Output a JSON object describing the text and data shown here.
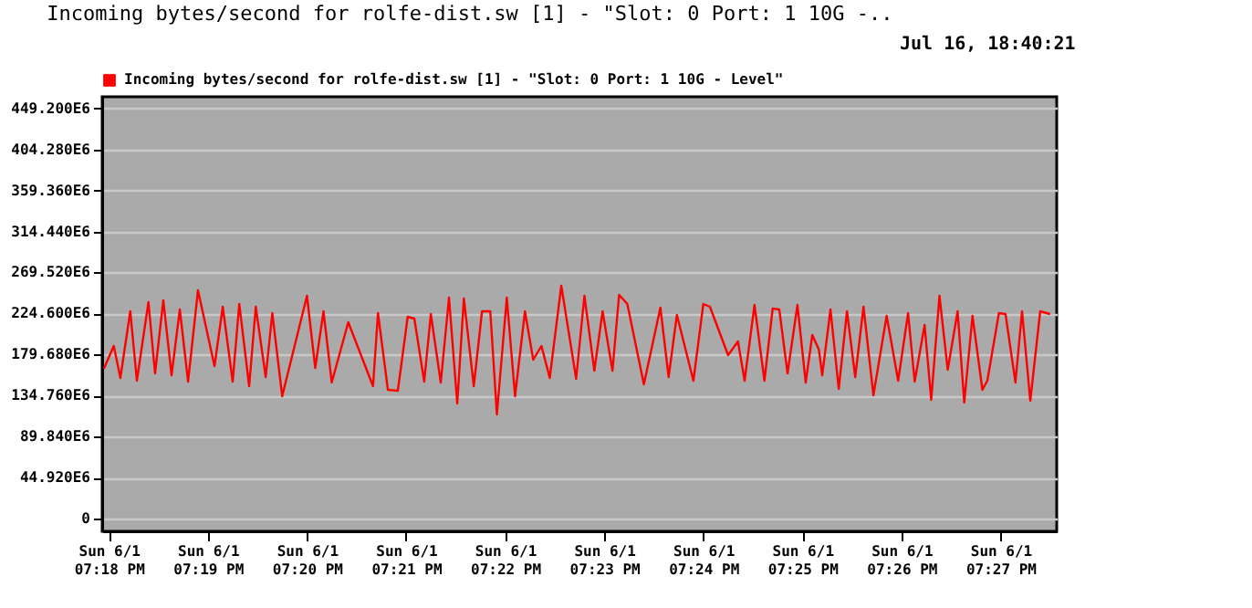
{
  "chart_data": {
    "type": "line",
    "title": "Incoming bytes/second for rolfe-dist.sw [1] - \"Slot: 0 Port: 1 10G -..",
    "annotations": [
      "Jul 16, 18:40:21"
    ],
    "x": [
      "--06-01T19:17:57",
      "--06-01T19:18:03",
      "--06-01T19:18:07",
      "--06-01T19:18:13",
      "--06-01T19:18:17",
      "--06-01T19:18:24",
      "--06-01T19:18:28",
      "--06-01T19:18:33",
      "--06-01T19:18:38",
      "--06-01T19:18:43",
      "--06-01T19:18:48",
      "--06-01T19:18:54",
      "--06-01T19:19:04",
      "--06-01T19:19:09",
      "--06-01T19:19:15",
      "--06-01T19:19:19",
      "--06-01T19:19:25",
      "--06-01T19:19:29",
      "--06-01T19:19:35",
      "--06-01T19:19:39",
      "--06-01T19:19:45",
      "--06-01T19:20:00",
      "--06-01T19:20:05",
      "--06-01T19:20:10",
      "--06-01T19:20:15",
      "--06-01T19:20:25",
      "--06-01T19:20:40",
      "--06-01T19:20:43",
      "--06-01T19:20:49",
      "--06-01T19:20:55",
      "--06-01T19:21:01",
      "--06-01T19:21:05",
      "--06-01T19:21:11",
      "--06-01T19:21:15",
      "--06-01T19:21:21",
      "--06-01T19:21:26",
      "--06-01T19:21:31",
      "--06-01T19:21:35",
      "--06-01T19:21:41",
      "--06-01T19:21:46",
      "--06-01T19:21:51",
      "--06-01T19:21:55",
      "--06-01T19:22:01",
      "--06-01T19:22:06",
      "--06-01T19:22:12",
      "--06-01T19:22:17",
      "--06-01T19:22:22",
      "--06-01T19:22:27",
      "--06-01T19:22:34",
      "--06-01T19:22:43",
      "--06-01T19:22:48",
      "--06-01T19:22:54",
      "--06-01T19:22:59",
      "--06-01T19:23:05",
      "--06-01T19:23:09",
      "--06-01T19:23:14",
      "--06-01T19:23:24",
      "--06-01T19:23:34",
      "--06-01T19:23:39",
      "--06-01T19:23:44",
      "--06-01T19:23:54",
      "--06-01T19:24:00",
      "--06-01T19:24:04",
      "--06-01T19:24:15",
      "--06-01T19:24:21",
      "--06-01T19:24:25",
      "--06-01T19:24:31",
      "--06-01T19:24:37",
      "--06-01T19:24:42",
      "--06-01T19:24:46",
      "--06-01T19:24:51",
      "--06-01T19:24:57",
      "--06-01T19:25:02",
      "--06-01T19:25:06",
      "--06-01T19:25:10",
      "--06-01T19:25:12",
      "--06-01T19:25:17",
      "--06-01T19:25:22",
      "--06-01T19:25:27",
      "--06-01T19:25:32",
      "--06-01T19:25:37",
      "--06-01T19:25:43",
      "--06-01T19:25:51",
      "--06-01T19:25:58",
      "--06-01T19:26:04",
      "--06-01T19:26:08",
      "--06-01T19:26:14",
      "--06-01T19:26:18",
      "--06-01T19:26:23",
      "--06-01T19:26:28",
      "--06-01T19:26:34",
      "--06-01T19:26:38",
      "--06-01T19:26:43",
      "--06-01T19:26:49",
      "--06-01T19:26:52",
      "--06-01T19:26:59",
      "--06-01T19:27:03",
      "--06-01T19:27:09",
      "--06-01T19:27:13",
      "--06-01T19:27:18",
      "--06-01T19:27:24",
      "--06-01T19:27:30"
    ],
    "series": [
      {
        "name": "Incoming bytes/second for rolfe-dist.sw [1] - \"Slot: 0 Port: 1 10G - Level\"",
        "color": "#ff0000",
        "values": [
          164000000,
          189000000,
          154000000,
          227000000,
          151000000,
          237000000,
          159000000,
          239000000,
          157000000,
          229000000,
          150000000,
          250000000,
          167000000,
          232000000,
          150000000,
          235000000,
          145000000,
          232000000,
          155000000,
          225000000,
          134000000,
          244000000,
          165000000,
          227000000,
          149000000,
          215000000,
          145000000,
          225000000,
          141000000,
          140000000,
          221000000,
          219000000,
          150000000,
          224000000,
          149000000,
          242000000,
          126000000,
          241000000,
          145000000,
          227000000,
          227000000,
          114000000,
          242000000,
          134000000,
          227000000,
          174000000,
          189000000,
          154000000,
          255000000,
          153000000,
          244000000,
          162000000,
          227000000,
          162000000,
          245000000,
          235000000,
          147000000,
          231000000,
          155000000,
          223000000,
          151000000,
          235000000,
          232000000,
          179000000,
          194000000,
          151000000,
          234000000,
          151000000,
          230000000,
          229000000,
          159000000,
          234000000,
          149000000,
          201000000,
          185000000,
          157000000,
          229000000,
          142000000,
          227000000,
          155000000,
          232000000,
          135000000,
          222000000,
          151000000,
          225000000,
          150000000,
          212000000,
          130000000,
          244000000,
          163000000,
          227000000,
          127000000,
          222000000,
          141000000,
          151000000,
          225000000,
          224000000,
          149000000,
          227000000,
          129000000,
          227000000,
          224000000
        ]
      }
    ],
    "xlim": [
      "--06-01T19:17:56",
      "--06-01T19:27:34"
    ],
    "xticks": [
      {
        "value": "--06-01T19:18",
        "label": "Sun 6/1 07:18 PM"
      },
      {
        "value": "--06-01T19:19",
        "label": "Sun 6/1 07:19 PM"
      },
      {
        "value": "--06-01T19:20",
        "label": "Sun 6/1 07:20 PM"
      },
      {
        "value": "--06-01T19:21",
        "label": "Sun 6/1 07:21 PM"
      },
      {
        "value": "--06-01T19:22",
        "label": "Sun 6/1 07:22 PM"
      },
      {
        "value": "--06-01T19:23",
        "label": "Sun 6/1 07:23 PM"
      },
      {
        "value": "--06-01T19:24",
        "label": "Sun 6/1 07:24 PM"
      },
      {
        "value": "--06-01T19:25",
        "label": "Sun 6/1 07:25 PM"
      },
      {
        "value": "--06-01T19:26",
        "label": "Sun 6/1 07:26 PM"
      },
      {
        "value": "--06-01T19:27",
        "label": "Sun 6/1 07:27 PM"
      }
    ],
    "ylim": [
      -14000000,
      462000000
    ],
    "yticks": [
      0,
      {
        "value": 44920000,
        "label": "44.920E6"
      },
      {
        "value": 89840000,
        "label": "89.840E6"
      },
      {
        "value": 134760000,
        "label": "134.760E6"
      },
      {
        "value": 179680000,
        "label": "179.680E6"
      },
      {
        "value": 224600000,
        "label": "224.600E6"
      },
      {
        "value": 269520000,
        "label": "269.520E6"
      },
      {
        "value": 314440000,
        "label": "314.440E6"
      },
      {
        "value": 359360000,
        "label": "359.360E6"
      },
      {
        "value": 404280000,
        "label": "404.280E6"
      },
      {
        "value": 449200000,
        "label": "449.200E6"
      }
    ],
    "grid": "y",
    "legend": "top left"
  }
}
